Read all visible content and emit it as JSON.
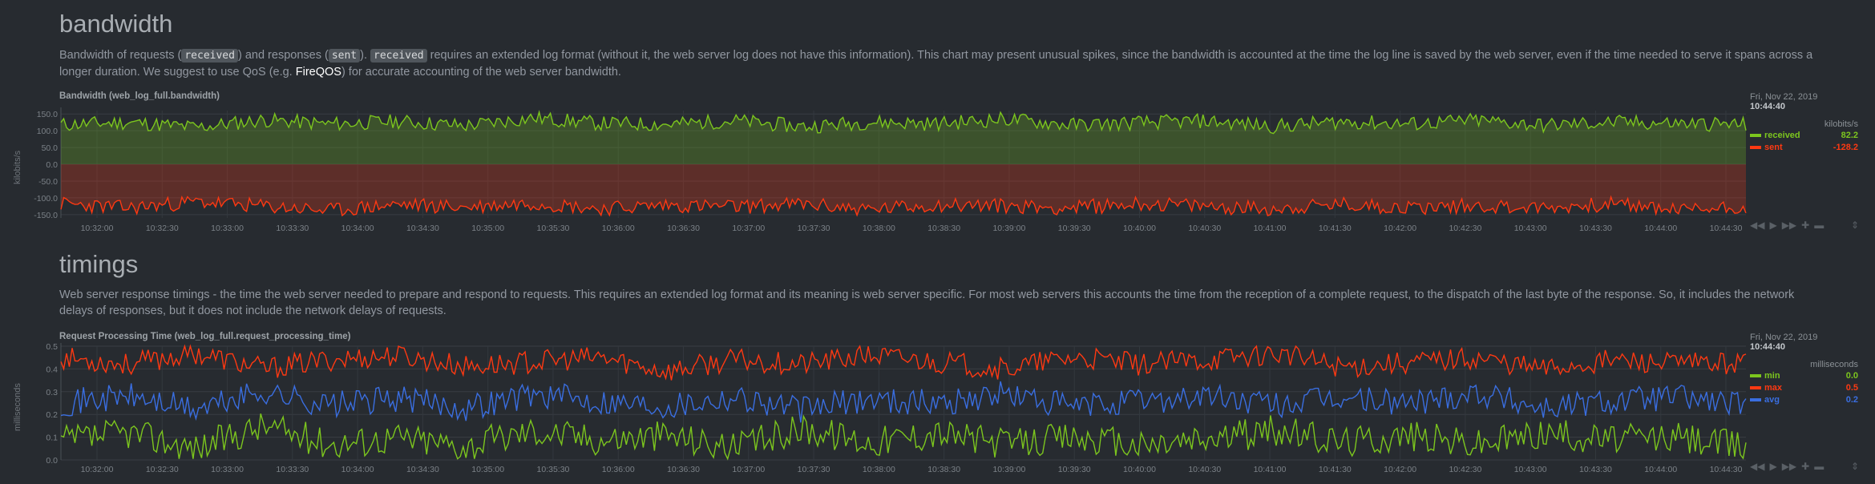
{
  "bandwidth": {
    "heading": "bandwidth",
    "desc": {
      "p1": "Bandwidth of requests (",
      "code1": "received",
      "p2": ") and responses (",
      "code2": "sent",
      "p3": "). ",
      "code3": "received",
      "p4": " requires an extended log format (without it, the web server log does not have this information). This chart may present unusual spikes, since the bandwidth is accounted at the time the log line is saved by the web server, even if the time needed to serve it spans across a longer duration. We suggest to use QoS (e.g. ",
      "link": "FireQOS",
      "p5": ") for accurate accounting of the web server bandwidth."
    },
    "chart_title": "Bandwidth (web_log_full.bandwidth)",
    "ytitle": "kilobits/s",
    "legend": {
      "date": "Fri, Nov 22, 2019",
      "time": "10:44:40",
      "units": "kilobits/s",
      "rows": [
        {
          "name": "received",
          "value": "82.2",
          "color": "#7cc61e"
        },
        {
          "name": "sent",
          "value": "-128.2",
          "color": "#fe3912"
        }
      ]
    }
  },
  "timings": {
    "heading": "timings",
    "desc": "Web server response timings - the time the web server needed to prepare and respond to requests. This requires an extended log format and its meaning is web server specific. For most web servers this accounts the time from the reception of a complete request, to the dispatch of the last byte of the response. So, it includes the network delays of responses, but it does not include the network delays of requests.",
    "chart_title": "Request Processing Time (web_log_full.request_processing_time)",
    "ytitle": "milliseconds",
    "legend": {
      "date": "Fri, Nov 22, 2019",
      "time": "10:44:40",
      "units": "milliseconds",
      "rows": [
        {
          "name": "min",
          "value": "0.0",
          "color": "#7cc61e"
        },
        {
          "name": "max",
          "value": "0.5",
          "color": "#fe3912"
        },
        {
          "name": "avg",
          "value": "0.2",
          "color": "#3a6ee0"
        }
      ]
    }
  },
  "toolbar_icons": [
    "rewind-icon",
    "play-icon",
    "fast-forward-icon",
    "zoom-in-icon",
    "zoom-out-icon"
  ],
  "chart_data": [
    {
      "type": "area",
      "title": "Bandwidth (web_log_full.bandwidth)",
      "ylabel": "kilobits/s",
      "ylim": [
        -160,
        160
      ],
      "yticks": [
        "150.0",
        "100.0",
        "50.0",
        "0.0",
        "-50.0",
        "-100.0",
        "-150.0"
      ],
      "ytick_values": [
        150,
        100,
        50,
        0,
        -50,
        -100,
        -150
      ],
      "x": [
        "10:32:00",
        "10:32:30",
        "10:33:00",
        "10:33:30",
        "10:34:00",
        "10:34:30",
        "10:35:00",
        "10:35:30",
        "10:36:00",
        "10:36:30",
        "10:37:00",
        "10:37:30",
        "10:38:00",
        "10:38:30",
        "10:39:00",
        "10:39:30",
        "10:40:00",
        "10:40:30",
        "10:41:00",
        "10:41:30",
        "10:42:00",
        "10:42:30",
        "10:43:00",
        "10:43:30",
        "10:44:00",
        "10:44:30"
      ],
      "series": [
        {
          "name": "received",
          "color": "#7cc61e",
          "values": [
            118,
            125,
            110,
            132,
            120,
            128,
            115,
            138,
            122,
            119,
            130,
            112,
            126,
            121,
            135,
            117,
            124,
            129,
            113,
            127,
            120,
            131,
            116,
            125,
            122,
            118
          ]
        },
        {
          "name": "sent",
          "color": "#fe3912",
          "values": [
            -118,
            -130,
            -112,
            -125,
            -138,
            -120,
            -128,
            -115,
            -132,
            -122,
            -127,
            -119,
            -135,
            -121,
            -124,
            -130,
            -117,
            -126,
            -133,
            -120,
            -129,
            -123,
            -131,
            -118,
            -136,
            -125
          ]
        }
      ],
      "grid": true,
      "legend": "right"
    },
    {
      "type": "line",
      "title": "Request Processing Time (web_log_full.request_processing_time)",
      "ylabel": "milliseconds",
      "ylim": [
        0,
        0.5
      ],
      "yticks": [
        "0.5",
        "0.4",
        "0.3",
        "0.2",
        "0.1",
        "0.0"
      ],
      "ytick_values": [
        0.5,
        0.4,
        0.3,
        0.2,
        0.1,
        0.0
      ],
      "x": [
        "10:32:00",
        "10:32:30",
        "10:33:00",
        "10:33:30",
        "10:34:00",
        "10:34:30",
        "10:35:00",
        "10:35:30",
        "10:36:00",
        "10:36:30",
        "10:37:00",
        "10:37:30",
        "10:38:00",
        "10:38:30",
        "10:39:00",
        "10:39:30",
        "10:40:00",
        "10:40:30",
        "10:41:00",
        "10:41:30",
        "10:42:00",
        "10:42:30",
        "10:43:00",
        "10:43:30",
        "10:44:00",
        "10:44:30"
      ],
      "series": [
        {
          "name": "min",
          "color": "#7cc61e",
          "values": [
            0.08,
            0.12,
            0.05,
            0.15,
            0.07,
            0.1,
            0.06,
            0.13,
            0.09,
            0.11,
            0.05,
            0.14,
            0.08,
            0.12,
            0.07,
            0.1,
            0.06,
            0.09,
            0.13,
            0.08,
            0.11,
            0.07,
            0.12,
            0.09,
            0.1,
            0.06
          ]
        },
        {
          "name": "max",
          "color": "#fe3912",
          "values": [
            0.45,
            0.42,
            0.47,
            0.4,
            0.44,
            0.46,
            0.41,
            0.43,
            0.45,
            0.39,
            0.44,
            0.42,
            0.46,
            0.43,
            0.4,
            0.45,
            0.42,
            0.44,
            0.47,
            0.41,
            0.43,
            0.45,
            0.4,
            0.44,
            0.42,
            0.43
          ]
        },
        {
          "name": "avg",
          "color": "#3a6ee0",
          "values": [
            0.25,
            0.28,
            0.22,
            0.3,
            0.24,
            0.27,
            0.23,
            0.29,
            0.26,
            0.24,
            0.28,
            0.22,
            0.27,
            0.25,
            0.29,
            0.23,
            0.26,
            0.28,
            0.24,
            0.27,
            0.25,
            0.3,
            0.23,
            0.26,
            0.28,
            0.24
          ]
        }
      ],
      "grid": true,
      "legend": "right"
    }
  ]
}
